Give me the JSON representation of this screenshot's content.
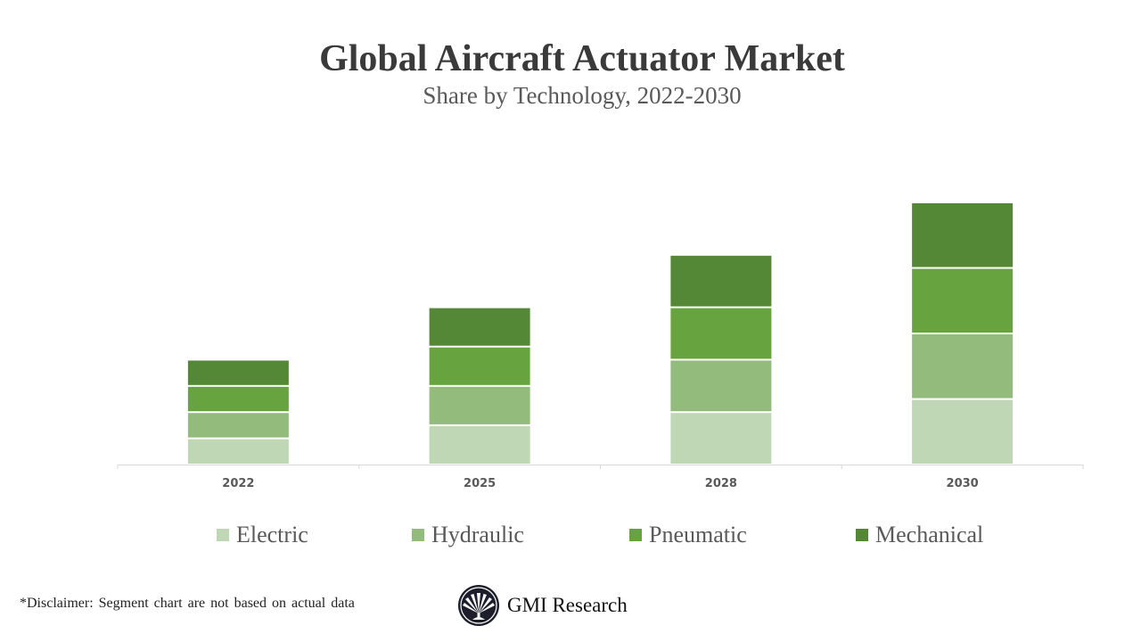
{
  "chart_data": {
    "type": "bar",
    "stacked": true,
    "title": "Global Aircraft Actuator Market",
    "subtitle": "Share by Technology, 2022-2030",
    "categories": [
      "2022",
      "2025",
      "2028",
      "2030"
    ],
    "series": [
      {
        "name": "Electric",
        "color": "#bfd7b5",
        "values": [
          1,
          1.5,
          2,
          2.5
        ]
      },
      {
        "name": "Hydraulic",
        "color": "#93bb7c",
        "values": [
          1,
          1.5,
          2,
          2.5
        ]
      },
      {
        "name": "Pneumatic",
        "color": "#67a33f",
        "values": [
          1,
          1.5,
          2,
          2.5
        ]
      },
      {
        "name": "Mechanical",
        "color": "#548736",
        "values": [
          1,
          1.5,
          2,
          2.5
        ]
      }
    ],
    "ylim": [
      0,
      10
    ],
    "y_axis_shown": false,
    "grid": false,
    "legend": "bottom"
  },
  "footer": {
    "disclaimer": "*Disclaimer:  Segment chart are not based on actual data",
    "brand": "GMI Research"
  }
}
